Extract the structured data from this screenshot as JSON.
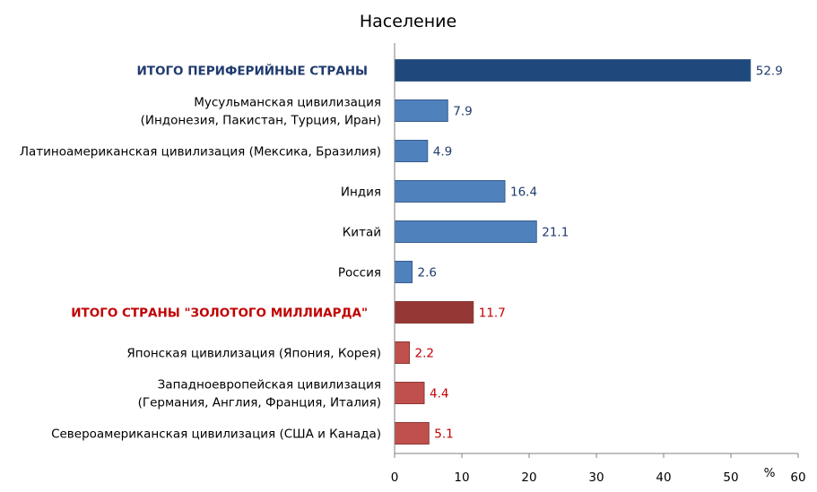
{
  "chart_data": {
    "type": "bar",
    "orientation": "horizontal",
    "title": "Население",
    "xunit": "%",
    "xlim": [
      0,
      60
    ],
    "xticks": [
      0,
      10,
      20,
      30,
      40,
      50,
      60
    ],
    "grid": false,
    "legend": "none",
    "categories": [
      {
        "label": [
          "ИТОГО ПЕРИФЕРИЙНЫЕ  СТРАНЫ"
        ],
        "value": 52.9,
        "value_label": "52.9",
        "group": "periphery",
        "is_total": true
      },
      {
        "label": [
          "Мусульманская цивилизация",
          "(Индонезия, Пакистан, Турция, Иран)"
        ],
        "value": 7.9,
        "value_label": "7.9",
        "group": "periphery",
        "is_total": false
      },
      {
        "label": [
          "Латиноамериканская цивилизация (Мексика, Бразилия)"
        ],
        "value": 4.9,
        "value_label": "4.9",
        "group": "periphery",
        "is_total": false
      },
      {
        "label": [
          "Индия"
        ],
        "value": 16.4,
        "value_label": "16.4",
        "group": "periphery",
        "is_total": false
      },
      {
        "label": [
          "Китай"
        ],
        "value": 21.1,
        "value_label": "21.1",
        "group": "periphery",
        "is_total": false
      },
      {
        "label": [
          "Россия"
        ],
        "value": 2.6,
        "value_label": "2.6",
        "group": "periphery",
        "is_total": false
      },
      {
        "label": [
          "ИТОГО СТРАНЫ  \"ЗОЛОТОГО  МИЛЛИАРДА\""
        ],
        "value": 11.7,
        "value_label": "11.7",
        "group": "golden",
        "is_total": true
      },
      {
        "label": [
          "Японская цивилизация (Япония, Корея)"
        ],
        "value": 2.2,
        "value_label": "2.2",
        "group": "golden",
        "is_total": false
      },
      {
        "label": [
          "Западноевропейская цивилизация",
          "(Германия, Англия, Франция, Италия)"
        ],
        "value": 4.4,
        "value_label": "4.4",
        "group": "golden",
        "is_total": false
      },
      {
        "label": [
          "Североамериканская цивилизация (США и Канада)"
        ],
        "value": 5.1,
        "value_label": "5.1",
        "group": "golden",
        "is_total": false
      }
    ],
    "colors": {
      "periphery_total": "#1F497D",
      "periphery": "#4F81BD",
      "golden_total": "#953735",
      "golden": "#C0504D",
      "periphery_value_text": "#1F3A6E",
      "golden_value_text": "#C00000"
    }
  }
}
